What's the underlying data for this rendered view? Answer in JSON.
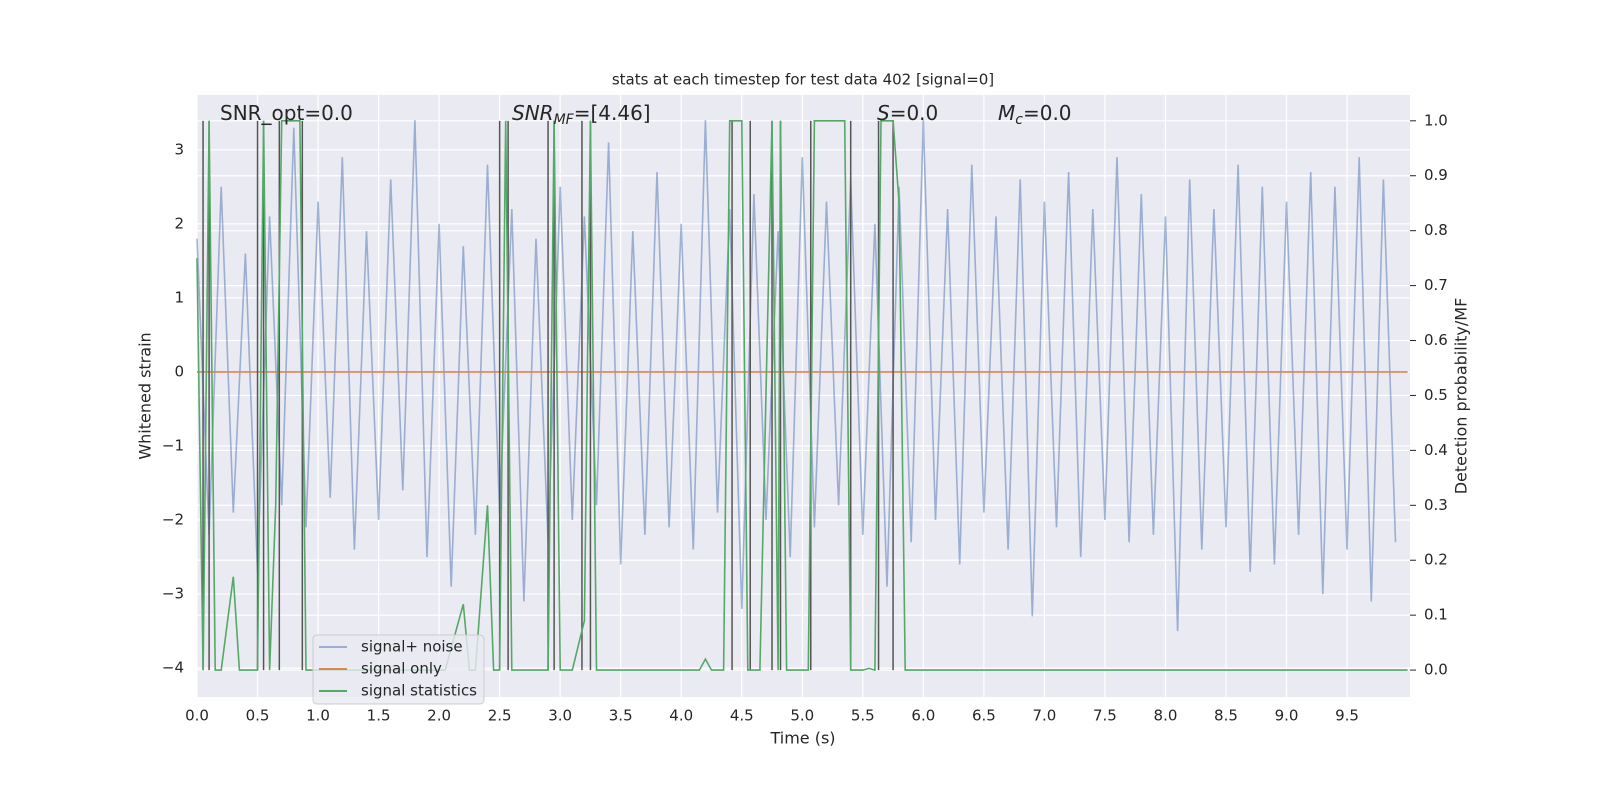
{
  "chart_data": {
    "type": "line",
    "title": "stats at each timestep for test data 402 [signal=0]",
    "xlabel": "Time (s)",
    "ylabel": "Whitened strain",
    "y2label": "Detection probability/MF",
    "xlim": [
      0,
      10.02
    ],
    "ylim": [
      -4.39,
      3.74
    ],
    "y2lim": [
      -0.049,
      1.047
    ],
    "xticks": [
      {
        "value": 0,
        "label": "0.0"
      },
      {
        "value": 0.5,
        "label": "0.5"
      },
      {
        "value": 1,
        "label": "1.0"
      },
      {
        "value": 1.5,
        "label": "1.5"
      },
      {
        "value": 2,
        "label": "2.0"
      },
      {
        "value": 2.5,
        "label": "2.5"
      },
      {
        "value": 3,
        "label": "3.0"
      },
      {
        "value": 3.5,
        "label": "3.5"
      },
      {
        "value": 4,
        "label": "4.0"
      },
      {
        "value": 4.5,
        "label": "4.5"
      },
      {
        "value": 5,
        "label": "5.0"
      },
      {
        "value": 5.5,
        "label": "5.5"
      },
      {
        "value": 6,
        "label": "6.0"
      },
      {
        "value": 6.5,
        "label": "6.5"
      },
      {
        "value": 7,
        "label": "7.0"
      },
      {
        "value": 7.5,
        "label": "7.5"
      },
      {
        "value": 8,
        "label": "8.0"
      },
      {
        "value": 8.5,
        "label": "8.5"
      },
      {
        "value": 9,
        "label": "9.0"
      },
      {
        "value": 9.5,
        "label": "9.5"
      }
    ],
    "yticks": [
      {
        "value": -4,
        "label": "−4"
      },
      {
        "value": -3,
        "label": "−3"
      },
      {
        "value": -2,
        "label": "−2"
      },
      {
        "value": -1,
        "label": "−1"
      },
      0,
      1,
      2,
      3
    ],
    "y2ticks": [
      {
        "value": 0,
        "label": "0.0"
      },
      {
        "value": 0.1,
        "label": "0.1"
      },
      {
        "value": 0.2,
        "label": "0.2"
      },
      {
        "value": 0.3,
        "label": "0.3"
      },
      {
        "value": 0.4,
        "label": "0.4"
      },
      {
        "value": 0.5,
        "label": "0.5"
      },
      {
        "value": 0.6,
        "label": "0.6"
      },
      {
        "value": 0.7,
        "label": "0.7"
      },
      {
        "value": 0.8,
        "label": "0.8"
      },
      {
        "value": 0.9,
        "label": "0.9"
      },
      {
        "value": 1,
        "label": "1.0"
      }
    ],
    "grid": true,
    "legend_loc": "lower left",
    "annotations": [
      {
        "main": "SNR_opt=0.0"
      },
      {
        "main": "SNR",
        "sub": "MF",
        "rest": "=[4.46]"
      },
      {
        "main": "S",
        "rest": "=0.0"
      },
      {
        "main": "M",
        "sub": "c",
        "rest": "=0.0"
      }
    ],
    "vlines": {
      "color": "#555555",
      "ymin": 0,
      "ymax": 1,
      "x": [
        0.05,
        0.1,
        0.5,
        0.55,
        0.68,
        0.87,
        2.5,
        2.57,
        2.9,
        2.95,
        3.18,
        3.25,
        4.42,
        4.57,
        4.75,
        4.82,
        5.07,
        5.4,
        5.63,
        5.75
      ]
    },
    "series": [
      {
        "name": "signal+ noise",
        "color": "#4c72b0",
        "opacity": 0.5,
        "x": [
          0.0,
          0.1,
          0.2,
          0.3,
          0.4,
          0.5,
          0.6,
          0.7,
          0.8,
          0.9,
          1.0,
          1.1,
          1.2,
          1.3,
          1.4,
          1.5,
          1.6,
          1.7,
          1.8,
          1.9,
          2.0,
          2.1,
          2.2,
          2.3,
          2.4,
          2.5,
          2.6,
          2.7,
          2.8,
          2.9,
          3.0,
          3.1,
          3.2,
          3.3,
          3.4,
          3.5,
          3.6,
          3.7,
          3.8,
          3.9,
          4.0,
          4.1,
          4.2,
          4.3,
          4.4,
          4.5,
          4.6,
          4.7,
          4.8,
          4.9,
          5.0,
          5.1,
          5.2,
          5.3,
          5.4,
          5.5,
          5.6,
          5.7,
          5.8,
          5.9,
          6.0,
          6.1,
          6.2,
          6.3,
          6.4,
          6.5,
          6.6,
          6.7,
          6.8,
          6.9,
          7.0,
          7.1,
          7.2,
          7.3,
          7.4,
          7.5,
          7.6,
          7.7,
          7.8,
          7.9,
          8.0,
          8.1,
          8.2,
          8.3,
          8.4,
          8.5,
          8.6,
          8.7,
          8.8,
          8.9,
          9.0,
          9.1,
          9.2,
          9.3,
          9.4,
          9.5,
          9.6,
          9.7,
          9.8,
          9.9
        ],
        "values": [
          1.8,
          -2.2,
          2.5,
          -1.9,
          1.6,
          -2.7,
          2.1,
          -1.8,
          3.3,
          -2.1,
          2.3,
          -1.7,
          2.9,
          -2.4,
          1.9,
          -2.0,
          2.6,
          -1.6,
          3.4,
          -2.5,
          2.0,
          -2.9,
          1.7,
          -2.2,
          2.8,
          -1.9,
          2.2,
          -3.1,
          1.8,
          -2.3,
          2.5,
          -2.0,
          2.1,
          -1.8,
          3.1,
          -2.6,
          1.9,
          -2.2,
          2.7,
          -2.1,
          2.0,
          -2.4,
          3.4,
          -1.9,
          2.2,
          -3.2,
          2.4,
          -2.0,
          1.9,
          -2.5,
          2.9,
          -2.1,
          2.3,
          -1.8,
          2.6,
          -2.2,
          2.0,
          -2.9,
          2.5,
          -2.3,
          3.4,
          -2.0,
          2.2,
          -2.6,
          2.8,
          -1.9,
          2.1,
          -2.4,
          2.6,
          -3.3,
          2.3,
          -2.1,
          2.7,
          -2.5,
          2.2,
          -2.0,
          2.9,
          -2.3,
          2.4,
          -2.2,
          2.1,
          -3.5,
          2.6,
          -2.4,
          2.2,
          -2.1,
          2.8,
          -2.7,
          2.5,
          -2.6,
          2.3,
          -2.2,
          2.7,
          -3.0,
          2.5,
          -2.4,
          2.9,
          -3.1,
          2.6,
          -2.3
        ]
      },
      {
        "name": "signal only",
        "color": "#dd8452",
        "x": [
          0,
          10
        ],
        "values": [
          0,
          0
        ]
      },
      {
        "name": "signal statistics",
        "color": "#55a868",
        "axis": "y2",
        "x": [
          0.0,
          0.05,
          0.1,
          0.15,
          0.2,
          0.3,
          0.35,
          0.45,
          0.5,
          0.55,
          0.6,
          0.65,
          0.7,
          0.75,
          0.85,
          0.9,
          0.95,
          2.05,
          2.2,
          2.25,
          2.3,
          2.4,
          2.45,
          2.5,
          2.55,
          2.6,
          2.65,
          2.9,
          2.95,
          3.0,
          3.1,
          3.2,
          3.25,
          3.3,
          4.15,
          4.2,
          4.25,
          4.35,
          4.4,
          4.5,
          4.55,
          4.65,
          4.75,
          4.8,
          4.82,
          4.87,
          5.05,
          5.1,
          5.2,
          5.25,
          5.35,
          5.4,
          5.5,
          5.55,
          5.6,
          5.65,
          5.7,
          5.75,
          5.8,
          5.85,
          10.0
        ],
        "values": [
          0.75,
          0.0,
          1.0,
          0.0,
          0.0,
          0.17,
          0.0,
          0.0,
          0.0,
          1.0,
          0.0,
          0.3,
          1.0,
          1.0,
          1.0,
          0.0,
          0.0,
          0.0,
          0.12,
          0.0,
          0.0,
          0.3,
          0.0,
          0.0,
          1.0,
          0.0,
          0.0,
          0.0,
          1.0,
          0.0,
          0.0,
          0.09,
          1.0,
          0.0,
          0.0,
          0.02,
          0.0,
          0.0,
          1.0,
          1.0,
          0.0,
          0.0,
          1.0,
          0.0,
          1.0,
          0.0,
          0.0,
          1.0,
          1.0,
          1.0,
          1.0,
          0.0,
          0.0,
          0.003,
          0.0,
          1.0,
          1.0,
          1.0,
          0.85,
          0.0,
          0.0
        ]
      }
    ]
  }
}
